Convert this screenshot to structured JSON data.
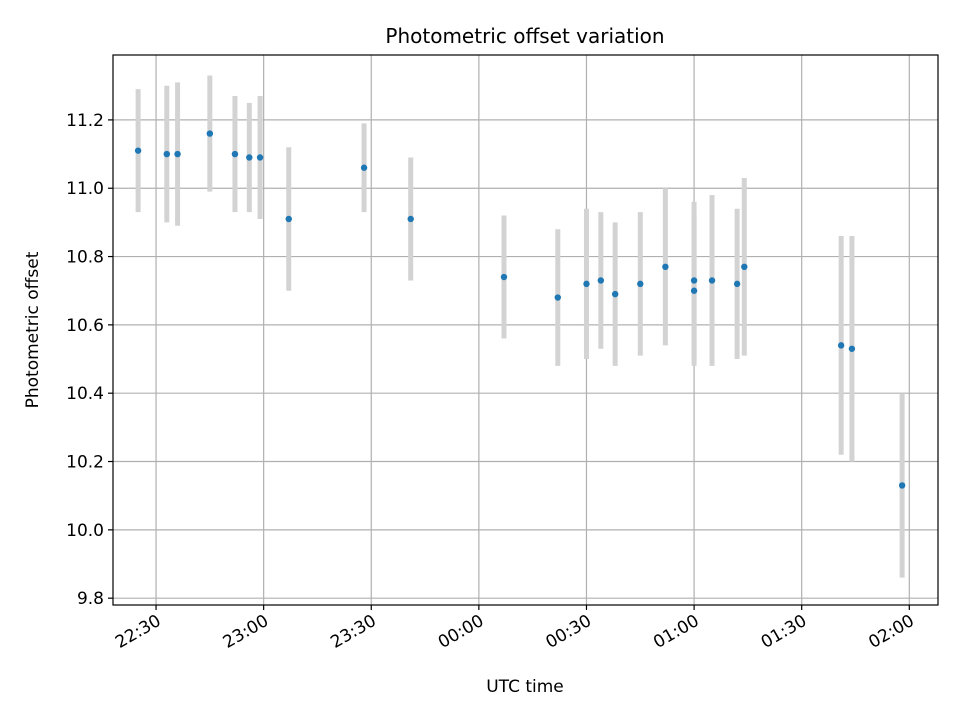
{
  "chart_data": {
    "type": "scatter",
    "title": "Photometric offset variation",
    "xlabel": "UTC time",
    "ylabel": "Photometric offset",
    "xlim": [
      "22:18",
      "02:08"
    ],
    "ylim": [
      9.78,
      11.39
    ],
    "grid": true,
    "x_ticks": [
      "22:30",
      "23:00",
      "23:30",
      "00:00",
      "00:30",
      "01:00",
      "01:30",
      "02:00"
    ],
    "y_ticks": [
      "9.8",
      "10.0",
      "10.2",
      "10.4",
      "10.6",
      "10.8",
      "11.0",
      "11.2"
    ],
    "colors": {
      "point": "#1f77b4",
      "errorbar": "#d3d3d3",
      "grid": "#b0b0b0"
    },
    "series": [
      {
        "points": [
          {
            "x": "22:25",
            "y": 11.11,
            "err": 0.18
          },
          {
            "x": "22:33",
            "y": 11.1,
            "err": 0.2
          },
          {
            "x": "22:36",
            "y": 11.1,
            "err": 0.21
          },
          {
            "x": "22:45",
            "y": 11.16,
            "err": 0.17
          },
          {
            "x": "22:52",
            "y": 11.1,
            "err": 0.17
          },
          {
            "x": "22:56",
            "y": 11.09,
            "err": 0.16
          },
          {
            "x": "22:59",
            "y": 11.09,
            "err": 0.18
          },
          {
            "x": "23:07",
            "y": 10.91,
            "err": 0.21
          },
          {
            "x": "23:28",
            "y": 11.06,
            "err": 0.13
          },
          {
            "x": "23:41",
            "y": 10.91,
            "err": 0.18
          },
          {
            "x": "00:07",
            "y": 10.74,
            "err": 0.18
          },
          {
            "x": "00:22",
            "y": 10.68,
            "err": 0.2
          },
          {
            "x": "00:30",
            "y": 10.72,
            "err": 0.22
          },
          {
            "x": "00:34",
            "y": 10.73,
            "err": 0.2
          },
          {
            "x": "00:38",
            "y": 10.69,
            "err": 0.21
          },
          {
            "x": "00:45",
            "y": 10.72,
            "err": 0.21
          },
          {
            "x": "00:52",
            "y": 10.77,
            "err": 0.23
          },
          {
            "x": "01:00",
            "y": 10.7,
            "err": 0.22
          },
          {
            "x": "01:00",
            "y": 10.73,
            "err": 0.23
          },
          {
            "x": "01:05",
            "y": 10.73,
            "err": 0.25
          },
          {
            "x": "01:12",
            "y": 10.72,
            "err": 0.22
          },
          {
            "x": "01:14",
            "y": 10.77,
            "err": 0.26
          },
          {
            "x": "01:41",
            "y": 10.54,
            "err": 0.32
          },
          {
            "x": "01:44",
            "y": 10.53,
            "err": 0.33
          },
          {
            "x": "01:58",
            "y": 10.13,
            "err": 0.27
          }
        ]
      }
    ]
  }
}
